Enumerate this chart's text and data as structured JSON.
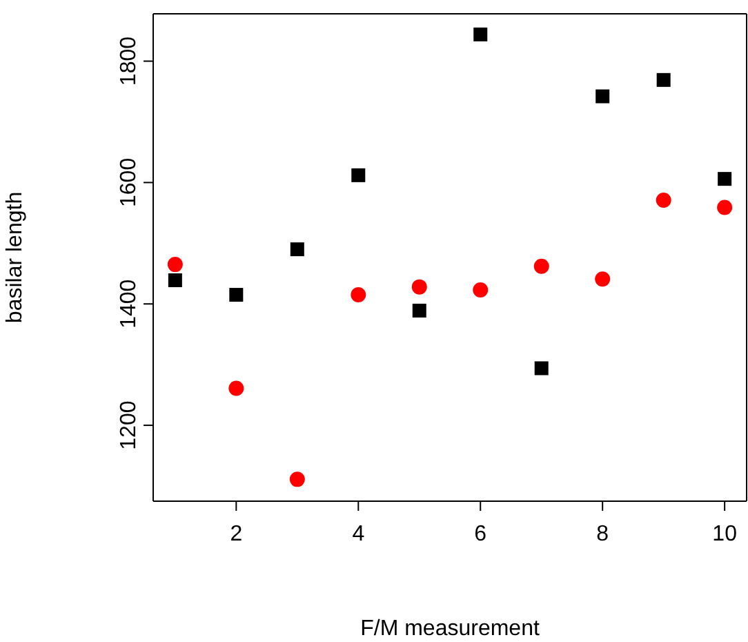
{
  "chart_data": {
    "type": "scatter",
    "xlabel": "F/M measurement",
    "ylabel": "basilar length",
    "x": [
      1,
      2,
      3,
      4,
      5,
      6,
      7,
      8,
      9,
      10
    ],
    "series": [
      {
        "color": "#000000",
        "marker": "square",
        "values": [
          1439,
          1415,
          1490,
          1612,
          1389,
          1844,
          1294,
          1742,
          1769,
          1606
        ]
      },
      {
        "color": "#ff0000",
        "marker": "circle",
        "values": [
          1465,
          1261,
          1111,
          1415,
          1428,
          1423,
          1462,
          1441,
          1571,
          1559
        ]
      }
    ],
    "xlim": [
      0.64,
      10.36
    ],
    "xticks": [
      2,
      4,
      6,
      8,
      10
    ],
    "ylim": [
      1075,
      1878
    ],
    "yticks": [
      1200,
      1400,
      1600,
      1800
    ],
    "legend": false
  }
}
